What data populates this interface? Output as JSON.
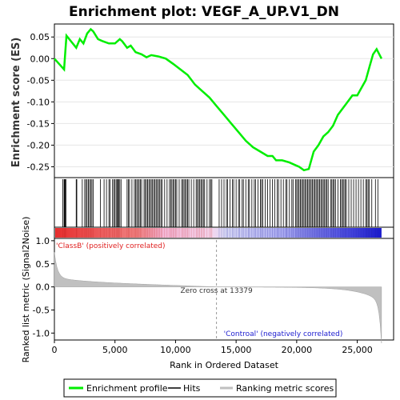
{
  "chart_data": {
    "type": "line",
    "title": "Enrichment plot: VEGF_A_UP.V1_DN",
    "xlabel": "Rank in Ordered Dataset",
    "top_ylabel": "Enrichment score (ES)",
    "bottom_ylabel": "Ranked list metric (Signal2Noise)",
    "x_range": [
      0,
      28000
    ],
    "x_ticks": [
      0,
      5000,
      10000,
      15000,
      20000,
      25000
    ],
    "x_tick_labels": [
      "0",
      "5,000",
      "10,000",
      "15,000",
      "20,000",
      "25,000"
    ],
    "es_ylim": [
      -0.275,
      0.08
    ],
    "es_ticks": [
      0.05,
      0.0,
      -0.05,
      -0.1,
      -0.15,
      -0.2,
      -0.25
    ],
    "es_tick_labels": [
      "0.05",
      "0.00",
      "-0.05",
      "-0.10",
      "-0.15",
      "-0.20",
      "-0.25"
    ],
    "metric_ylim": [
      -1.15,
      1.05
    ],
    "metric_ticks": [
      1.0,
      0.5,
      0.0,
      -0.5,
      -1.0
    ],
    "metric_tick_labels": [
      "1.0",
      "0.5",
      "0.0",
      "-0.5",
      "-1.0"
    ],
    "n_genes": 27000,
    "zero_cross": 13379,
    "zero_cross_label": "Zero cross at 13379",
    "pos_label": "'ClassB' (positively correlated)",
    "neg_label": "'Controal' (negatively correlated)",
    "enrichment_profile": {
      "x": [
        0,
        800,
        900,
        1000,
        1800,
        2100,
        2400,
        2700,
        3000,
        3200,
        3600,
        4000,
        4500,
        5000,
        5400,
        5600,
        6000,
        6300,
        6700,
        7200,
        7600,
        8000,
        8600,
        9200,
        9800,
        10400,
        11000,
        11600,
        12200,
        12800,
        13400,
        14000,
        14600,
        15200,
        15800,
        16400,
        17000,
        17600,
        18000,
        18300,
        18800,
        19400,
        19800,
        20200,
        20600,
        21000,
        21400,
        21800,
        22200,
        22600,
        23000,
        23400,
        23800,
        24200,
        24600,
        25000,
        25300,
        25700,
        26000,
        26300,
        26600,
        27000
      ],
      "y": [
        0.0,
        -0.025,
        0.015,
        0.053,
        0.025,
        0.045,
        0.035,
        0.058,
        0.068,
        0.063,
        0.045,
        0.04,
        0.035,
        0.035,
        0.045,
        0.04,
        0.025,
        0.03,
        0.015,
        0.01,
        0.003,
        0.008,
        0.005,
        0.0,
        -0.012,
        -0.025,
        -0.038,
        -0.06,
        -0.075,
        -0.09,
        -0.11,
        -0.13,
        -0.15,
        -0.17,
        -0.19,
        -0.205,
        -0.215,
        -0.225,
        -0.225,
        -0.235,
        -0.235,
        -0.24,
        -0.245,
        -0.25,
        -0.258,
        -0.255,
        -0.215,
        -0.2,
        -0.18,
        -0.17,
        -0.155,
        -0.13,
        -0.115,
        -0.1,
        -0.085,
        -0.085,
        -0.07,
        -0.05,
        -0.02,
        0.01,
        0.022,
        0.0
      ]
    },
    "hits": [
      700,
      800,
      850,
      900,
      950,
      1800,
      1850,
      2300,
      2500,
      2600,
      2700,
      2800,
      2900,
      3000,
      3100,
      3200,
      3800,
      4100,
      4300,
      4500,
      4600,
      4800,
      4900,
      5000,
      5100,
      5200,
      5250,
      5300,
      5400,
      5500,
      6000,
      6100,
      6200,
      6400,
      6600,
      6700,
      6800,
      6900,
      7000,
      7100,
      7200,
      7400,
      7500,
      7600,
      7700,
      7800,
      7900,
      8000,
      8100,
      8200,
      8300,
      8400,
      8500,
      8600,
      8700,
      8800,
      8900,
      9100,
      9300,
      9500,
      9600,
      9700,
      9800,
      9900,
      10000,
      10100,
      10300,
      10500,
      10600,
      10700,
      10800,
      10900,
      11000,
      11100,
      11300,
      11500,
      11700,
      11800,
      11900,
      12000,
      12100,
      12200,
      12300,
      12400,
      12600,
      12800,
      12900,
      13000,
      13600,
      13800,
      14000,
      14200,
      14300,
      14500,
      14700,
      14800,
      15000,
      15200,
      15300,
      15500,
      15600,
      15800,
      16000,
      16100,
      16300,
      16500,
      16600,
      16800,
      17000,
      17100,
      17200,
      17400,
      17600,
      17800,
      18000,
      18200,
      18400,
      18500,
      18700,
      18900,
      19100,
      19200,
      19400,
      19600,
      19700,
      19900,
      20000,
      20100,
      20200,
      20300,
      20400,
      20500,
      20600,
      20700,
      20800,
      20900,
      21000,
      21100,
      21200,
      21300,
      21400,
      21500,
      21600,
      21700,
      21800,
      21900,
      22000,
      22100,
      22200,
      22300,
      22400,
      22500,
      22600,
      22800,
      22900,
      23000,
      23100,
      23200,
      23400,
      23600,
      23700,
      23800,
      23900,
      24000,
      24100,
      24300,
      24500,
      24700,
      24900,
      25100,
      25300,
      25500,
      25700,
      25800,
      25900,
      26000,
      26200,
      26500,
      26700
    ]
  },
  "legend": {
    "items": [
      {
        "label": "Enrichment profile",
        "color": "#00ee00"
      },
      {
        "label": "Hits",
        "color": "#000000"
      },
      {
        "label": "Ranking metric scores",
        "color": "#c0c0c0"
      }
    ]
  }
}
